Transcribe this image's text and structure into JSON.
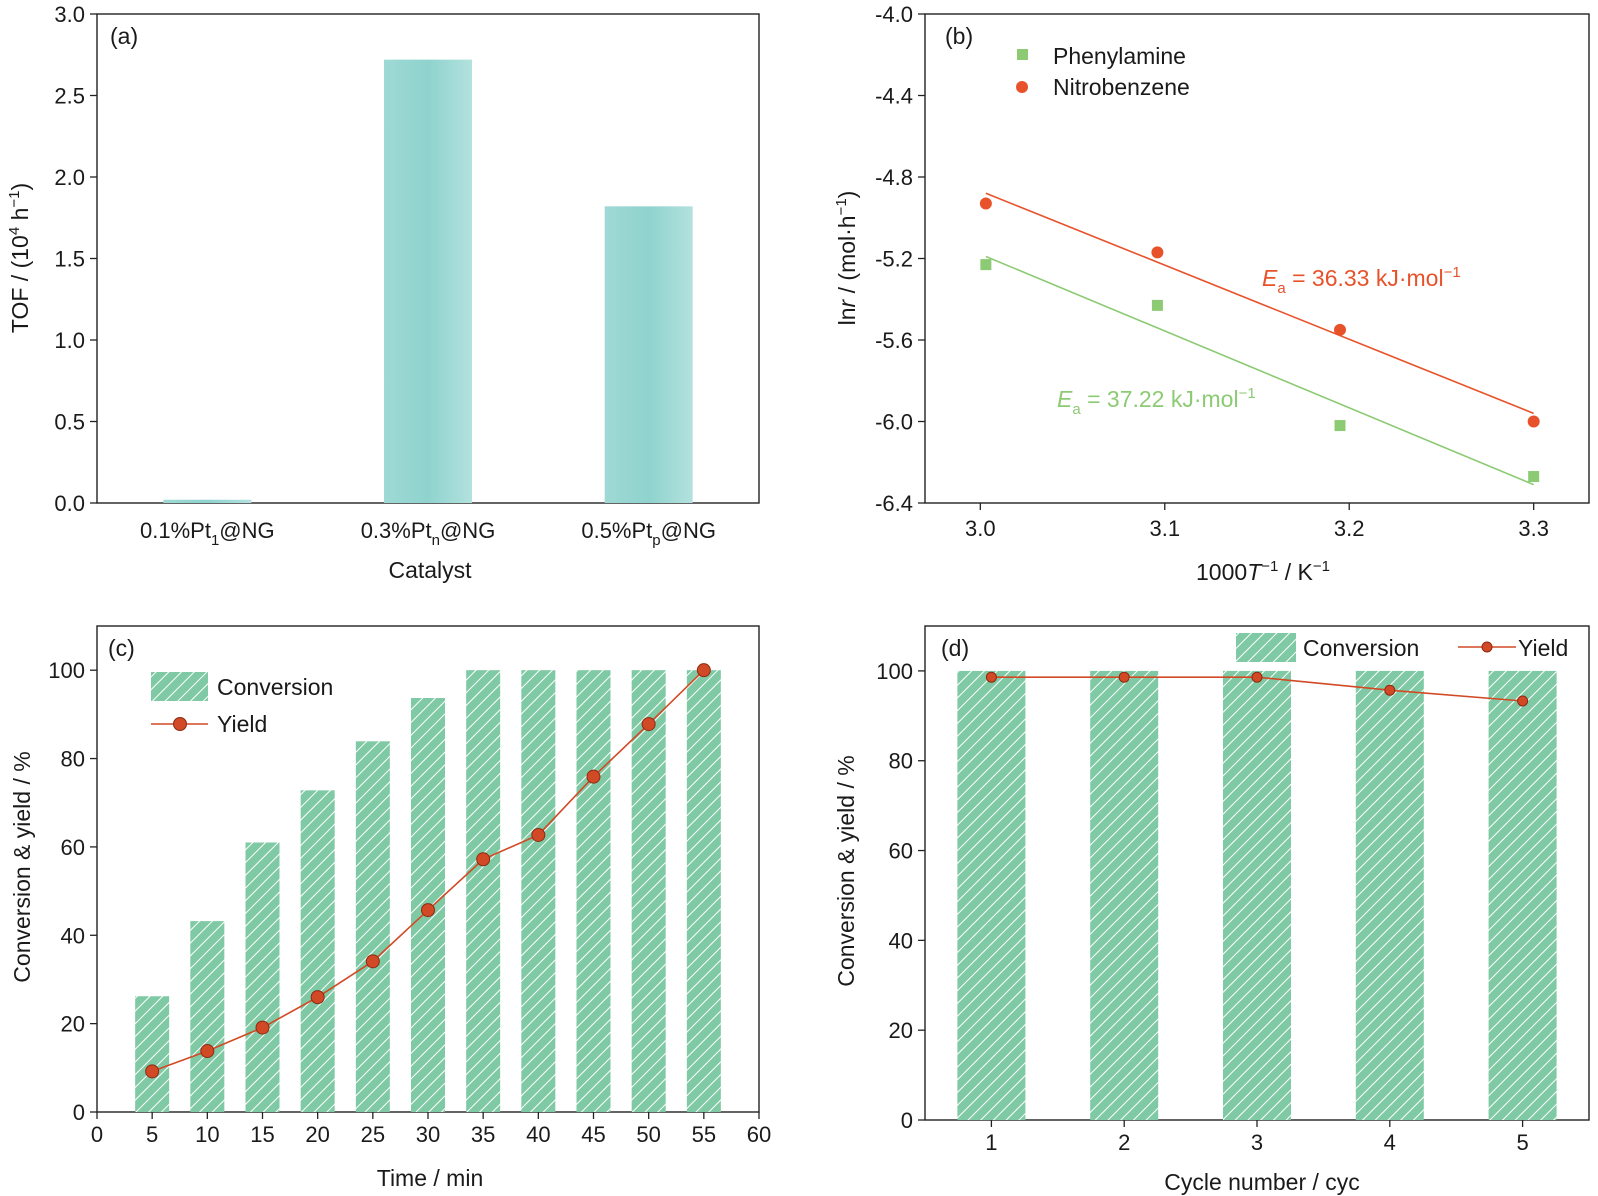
{
  "chart_data": [
    {
      "panel_label": "(a)",
      "type": "bar",
      "categories": [
        {
          "base": "0.1%Pt",
          "sub": "1",
          "rest": "@NG"
        },
        {
          "base": "0.3%Pt",
          "sub": "n",
          "rest": "@NG"
        },
        {
          "base": "0.5%Pt",
          "sub": "p",
          "rest": "@NG"
        }
      ],
      "values": [
        0.02,
        2.72,
        1.82
      ],
      "xlabel": "Catalyst",
      "ylabel": {
        "pre": "TOF / (10",
        "sup": "4",
        "mid": " h",
        "sup2": "−1",
        "post": ")"
      },
      "ylim": [
        0,
        3.0
      ],
      "yticks": [
        "0.0",
        "0.5",
        "1.0",
        "1.5",
        "2.0",
        "2.5",
        "3.0"
      ],
      "grid": false,
      "colors": {
        "bar": "#a6dcd8"
      }
    },
    {
      "panel_label": "(b)",
      "type": "scatter",
      "series": [
        {
          "name": "Phenylamine",
          "marker": "square",
          "color": "#8ccb73",
          "x": [
            3.003,
            3.096,
            3.195,
            3.3
          ],
          "y": [
            -5.23,
            -5.43,
            -6.02,
            -6.27
          ],
          "fit": {
            "x": [
              3.003,
              3.3
            ],
            "y": [
              -5.19,
              -6.31
            ]
          },
          "annotation": {
            "E": "E",
            "sub": "a",
            "text": " = 37.22 kJ·mol",
            "sup": "−1"
          }
        },
        {
          "name": "Nitrobenzene",
          "marker": "circle",
          "color": "#e8522a",
          "x": [
            3.003,
            3.096,
            3.195,
            3.3
          ],
          "y": [
            -4.93,
            -5.17,
            -5.55,
            -6.0
          ],
          "fit": {
            "x": [
              3.003,
              3.3
            ],
            "y": [
              -4.88,
              -5.96
            ]
          },
          "annotation": {
            "E": "E",
            "sub": "a",
            "text": " = 36.33 kJ·mol",
            "sup": "−1"
          }
        }
      ],
      "xlabel": {
        "pre": "1000",
        "italic": "T",
        "sup": "−1",
        "post": " / K",
        "sup2": "−1"
      },
      "ylabel": {
        "pre": "ln",
        "italic": "r",
        "post": " / (mol·h",
        "sup": "−1",
        "end": ")"
      },
      "xlim": [
        2.97,
        3.33
      ],
      "ylim": [
        -6.4,
        -4.0
      ],
      "xticks": [
        "3.0",
        "3.1",
        "3.2",
        "3.3"
      ],
      "yticks": [
        "-6.4",
        "-6.0",
        "-5.6",
        "-5.2",
        "-4.8",
        "-4.4",
        "-4.0"
      ],
      "legend": "top-left",
      "grid": false
    },
    {
      "panel_label": "(c)",
      "type": "bar",
      "x": [
        5,
        10,
        15,
        20,
        25,
        30,
        35,
        40,
        45,
        50,
        55
      ],
      "series": [
        {
          "name": "Conversion",
          "kind": "bar",
          "color": "#7fc9a4",
          "values": [
            26.2,
            43.2,
            61.0,
            72.8,
            83.9,
            93.7,
            100,
            100,
            100,
            100,
            100
          ]
        },
        {
          "name": "Yield",
          "kind": "line",
          "color": "#d24a25",
          "values": [
            9.2,
            13.8,
            19.1,
            26.0,
            34.1,
            45.7,
            57.2,
            62.7,
            75.9,
            87.8,
            100
          ]
        }
      ],
      "xlabel": "Time / min",
      "ylabel": "Conversion & yield / %",
      "xlim": [
        0,
        60
      ],
      "ylim": [
        0,
        110
      ],
      "xticks": [
        "0",
        "5",
        "10",
        "15",
        "20",
        "25",
        "30",
        "35",
        "40",
        "45",
        "50",
        "55",
        "60"
      ],
      "yticks": [
        "0",
        "20",
        "40",
        "60",
        "80",
        "100"
      ],
      "legend": "top-left",
      "grid": false
    },
    {
      "panel_label": "(d)",
      "type": "bar",
      "categories": [
        "1",
        "2",
        "3",
        "4",
        "5"
      ],
      "series": [
        {
          "name": "Conversion",
          "kind": "bar",
          "color": "#7fc9a4",
          "values": [
            100,
            100,
            100,
            100,
            100
          ]
        },
        {
          "name": "Yield",
          "kind": "line",
          "color": "#d24a25",
          "values": [
            98.6,
            98.6,
            98.6,
            95.7,
            93.3
          ]
        }
      ],
      "xlabel": "Cycle number / cyc",
      "ylabel": "Conversion & yield / %",
      "ylim": [
        0,
        110
      ],
      "yticks": [
        "0",
        "20",
        "40",
        "60",
        "80",
        "100"
      ],
      "legend": "top-right",
      "grid": false
    }
  ]
}
